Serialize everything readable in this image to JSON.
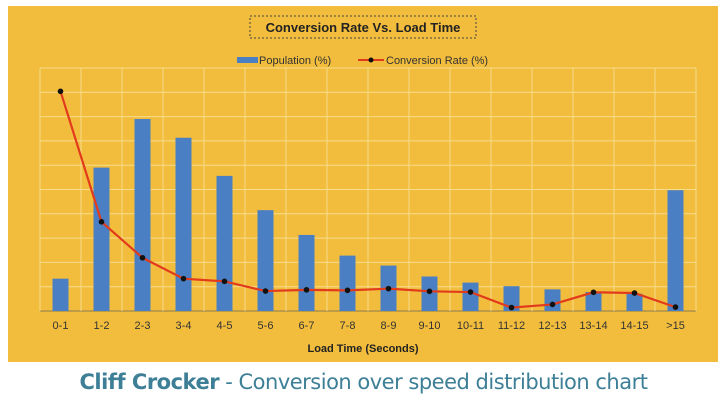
{
  "chart_data": {
    "type": "bar+line",
    "title": "Conversion Rate Vs. Load Time",
    "xlabel": "Load Time (Seconds)",
    "ylabel": "",
    "categories": [
      "0-1",
      "1-2",
      "2-3",
      "3-4",
      "4-5",
      "5-6",
      "6-7",
      "7-8",
      "8-9",
      "9-10",
      "10-11",
      "11-12",
      "12-13",
      "13-14",
      "14-15",
      ">15"
    ],
    "ylim": [
      0,
      10
    ],
    "y_tick_labels_shown": false,
    "grid": true,
    "legend": "top-center",
    "series": [
      {
        "name": "Population (%)",
        "type": "bar",
        "color": "#4a7fc4",
        "values": [
          1.33,
          5.9,
          7.9,
          7.13,
          5.56,
          4.15,
          3.13,
          2.28,
          1.87,
          1.42,
          1.17,
          1.02,
          0.89,
          0.78,
          0.71,
          4.97
        ]
      },
      {
        "name": "Conversion Rate (%)",
        "type": "line",
        "color": "#e23b1c",
        "marker_color": "#111111",
        "values": [
          9.04,
          3.67,
          2.19,
          1.33,
          1.22,
          0.82,
          0.87,
          0.85,
          0.92,
          0.81,
          0.78,
          0.14,
          0.27,
          0.77,
          0.74,
          0.16
        ]
      }
    ],
    "background_color": "#f2bd3d"
  },
  "caption": {
    "author": "Cliff Crocker",
    "separator": " - ",
    "text": "Conversion over speed distribution chart"
  }
}
